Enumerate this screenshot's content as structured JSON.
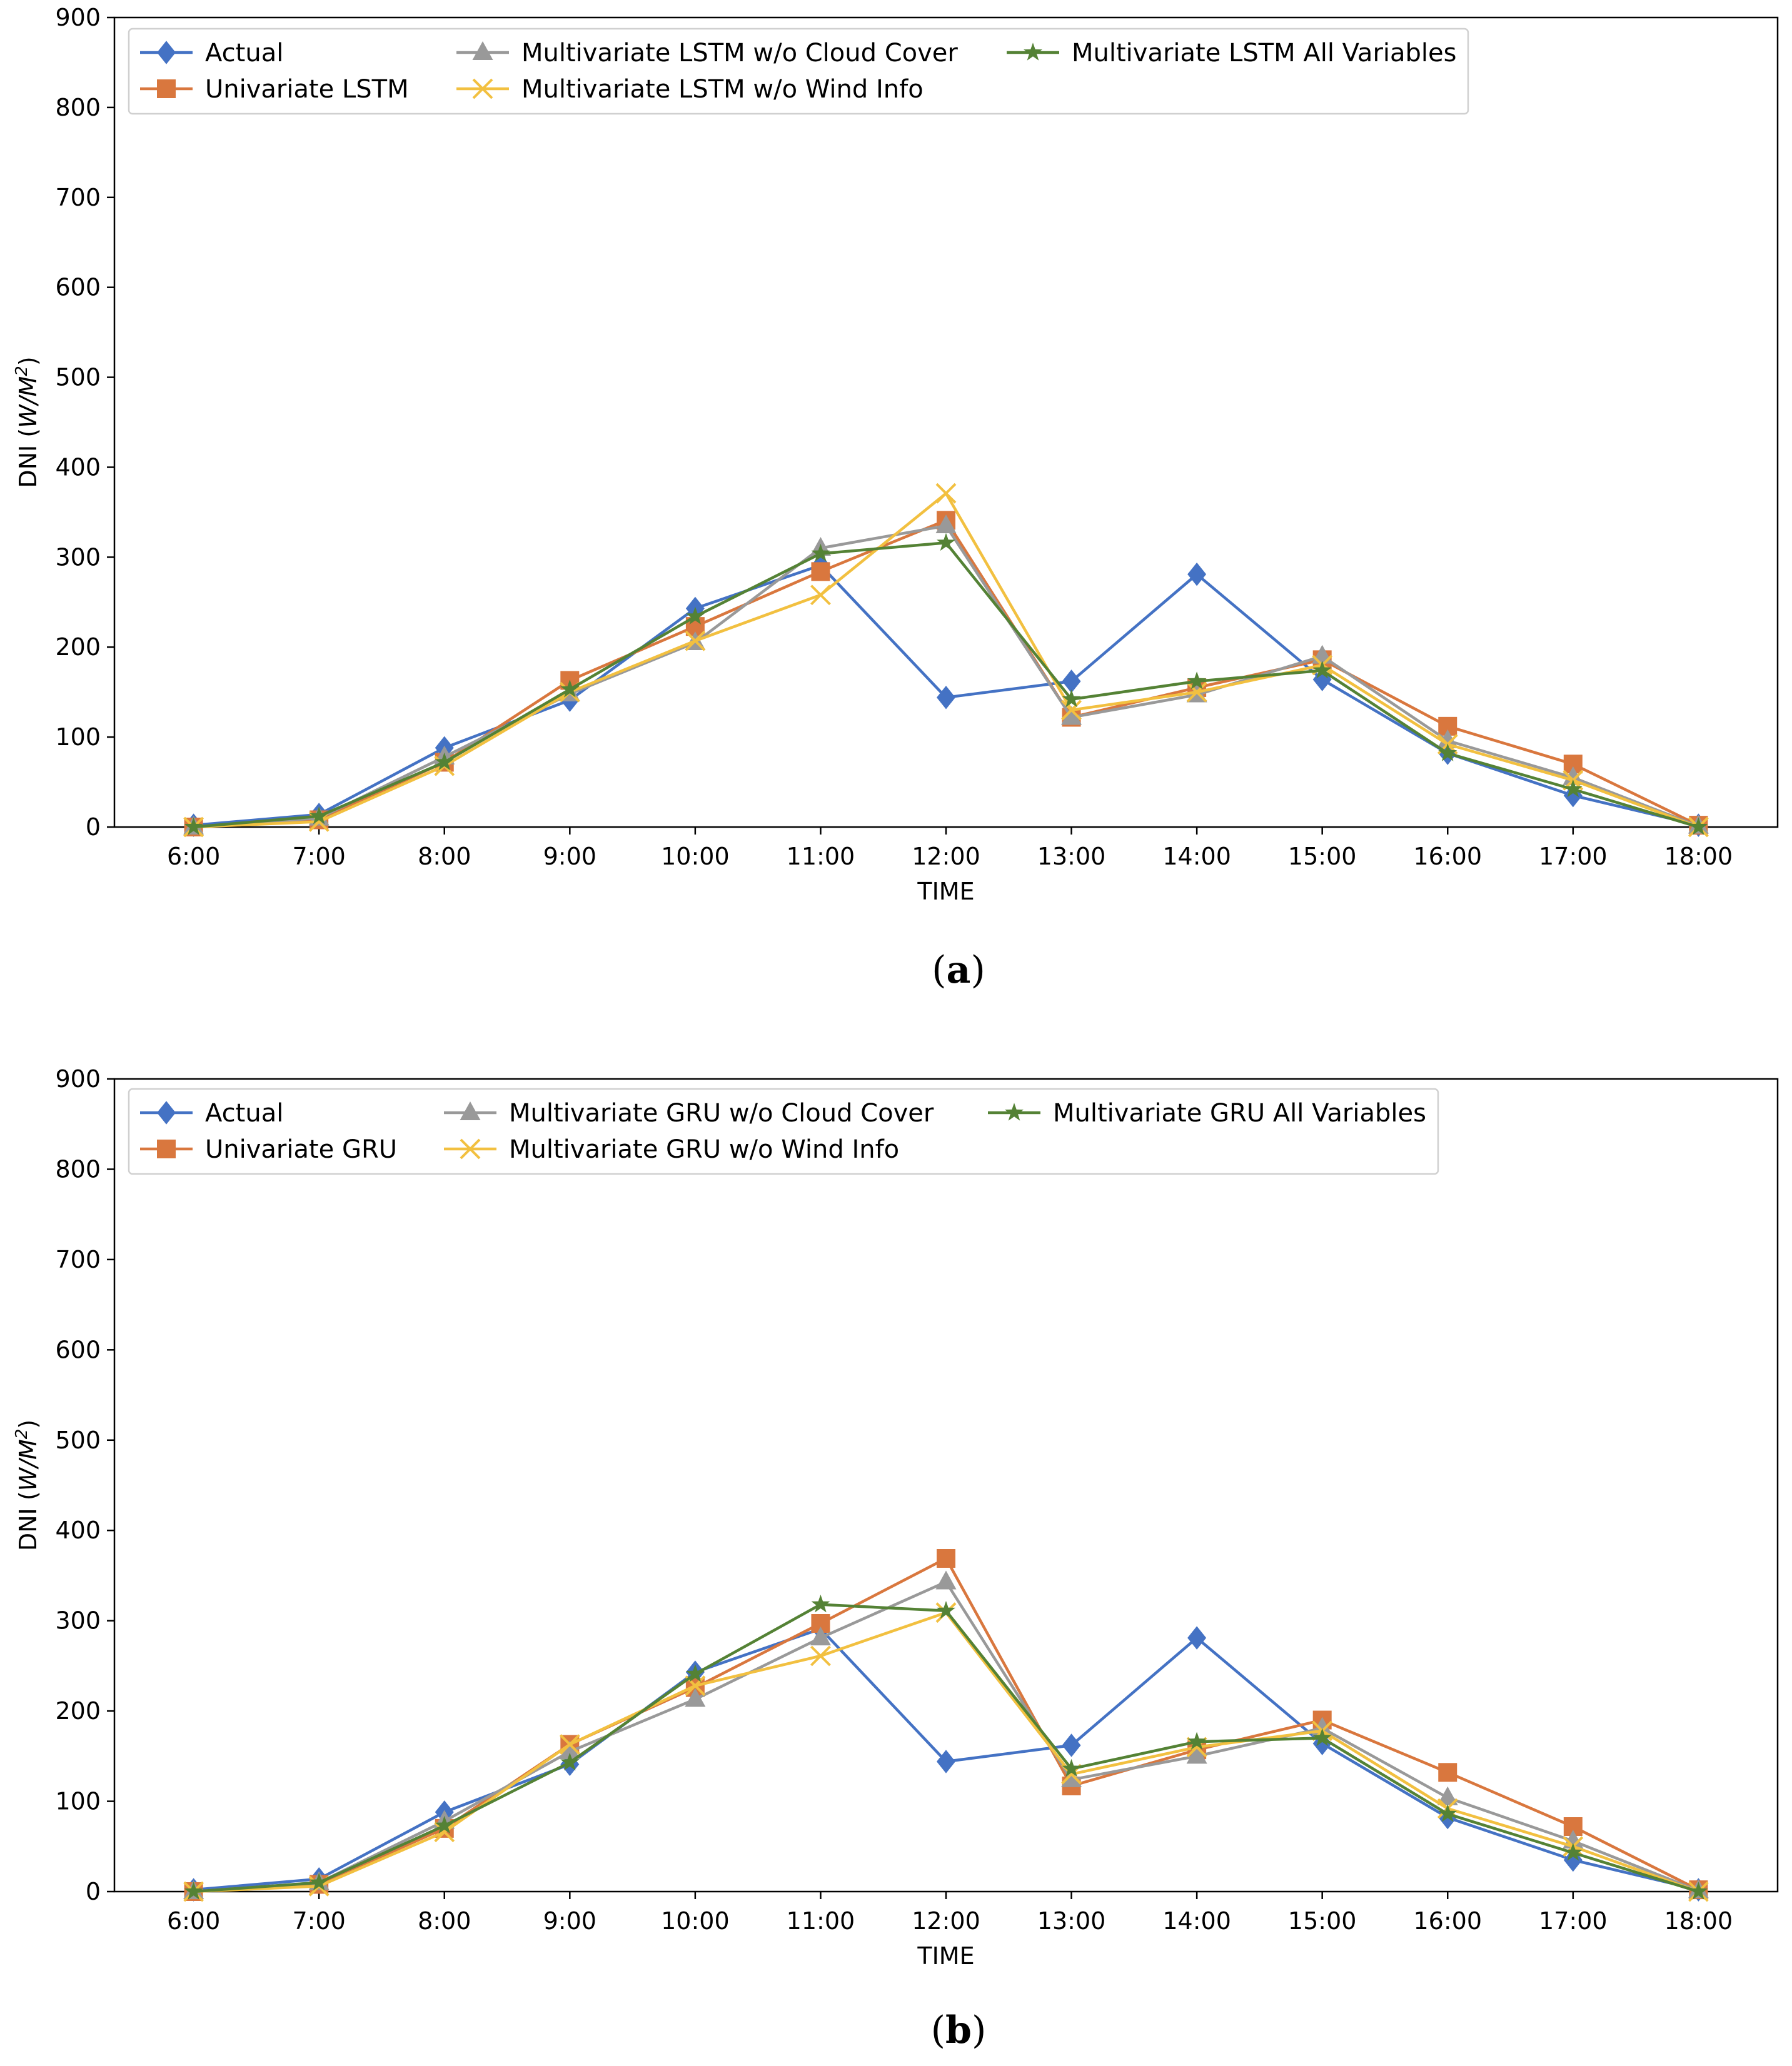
{
  "chart_data": [
    {
      "type": "line",
      "panel_label": "a",
      "xlabel": "TIME",
      "ylabel_prefix": "DNI",
      "ylabel_unit": "W/M",
      "ylabel_unit_sup": "2",
      "ylim": [
        0,
        900
      ],
      "yticks": [
        0,
        100,
        200,
        300,
        400,
        500,
        600,
        700,
        800,
        900
      ],
      "categories": [
        "6:00",
        "7:00",
        "8:00",
        "9:00",
        "10:00",
        "11:00",
        "12:00",
        "13:00",
        "14:00",
        "15:00",
        "16:00",
        "17:00",
        "18:00"
      ],
      "grid": false,
      "legend_location": "top-left",
      "series": [
        {
          "name": "Actual",
          "color": "#4472c4",
          "marker": "diamond",
          "values": [
            2,
            14,
            88,
            141,
            243,
            291,
            144,
            162,
            281,
            164,
            82,
            35,
            2
          ]
        },
        {
          "name": "Univariate LSTM",
          "color": "#d9773e",
          "marker": "square",
          "values": [
            0,
            8,
            72,
            163,
            223,
            284,
            341,
            122,
            155,
            186,
            112,
            70,
            2
          ]
        },
        {
          "name": "Multivariate LSTM w/o Cloud Cover",
          "color": "#999999",
          "marker": "triangle",
          "values": [
            0,
            10,
            78,
            148,
            205,
            310,
            335,
            122,
            147,
            190,
            96,
            55,
            1
          ]
        },
        {
          "name": "Multivariate LSTM w/o Wind Info",
          "color": "#f2c040",
          "marker": "x",
          "values": [
            0,
            6,
            68,
            150,
            207,
            258,
            371,
            130,
            150,
            180,
            92,
            52,
            0
          ]
        },
        {
          "name": "Multivariate LSTM All Variables",
          "color": "#548235",
          "marker": "star",
          "values": [
            0,
            12,
            72,
            153,
            234,
            304,
            316,
            142,
            162,
            174,
            82,
            42,
            0
          ]
        }
      ]
    },
    {
      "type": "line",
      "panel_label": "b",
      "xlabel": "TIME",
      "ylabel_prefix": "DNI",
      "ylabel_unit": "W/M",
      "ylabel_unit_sup": "2",
      "ylim": [
        0,
        900
      ],
      "yticks": [
        0,
        100,
        200,
        300,
        400,
        500,
        600,
        700,
        800,
        900
      ],
      "categories": [
        "6:00",
        "7:00",
        "8:00",
        "9:00",
        "10:00",
        "11:00",
        "12:00",
        "13:00",
        "14:00",
        "15:00",
        "16:00",
        "17:00",
        "18:00"
      ],
      "grid": false,
      "legend_location": "top-left",
      "series": [
        {
          "name": "Actual",
          "color": "#4472c4",
          "marker": "diamond",
          "values": [
            2,
            14,
            88,
            141,
            243,
            291,
            144,
            162,
            281,
            164,
            82,
            35,
            2
          ]
        },
        {
          "name": "Univariate GRU",
          "color": "#d9773e",
          "marker": "square",
          "values": [
            0,
            8,
            70,
            163,
            226,
            297,
            369,
            117,
            157,
            190,
            132,
            72,
            2
          ]
        },
        {
          "name": "Multivariate GRU w/o Cloud Cover",
          "color": "#999999",
          "marker": "triangle",
          "values": [
            0,
            10,
            78,
            155,
            213,
            281,
            343,
            124,
            150,
            181,
            104,
            56,
            1
          ]
        },
        {
          "name": "Multivariate GRU w/o Wind Info",
          "color": "#f2c040",
          "marker": "x",
          "values": [
            0,
            6,
            66,
            163,
            228,
            261,
            309,
            130,
            160,
            178,
            92,
            50,
            0
          ]
        },
        {
          "name": "Multivariate GRU All Variables",
          "color": "#548235",
          "marker": "star",
          "values": [
            0,
            10,
            73,
            143,
            241,
            318,
            311,
            136,
            166,
            170,
            86,
            43,
            0
          ]
        }
      ]
    }
  ]
}
